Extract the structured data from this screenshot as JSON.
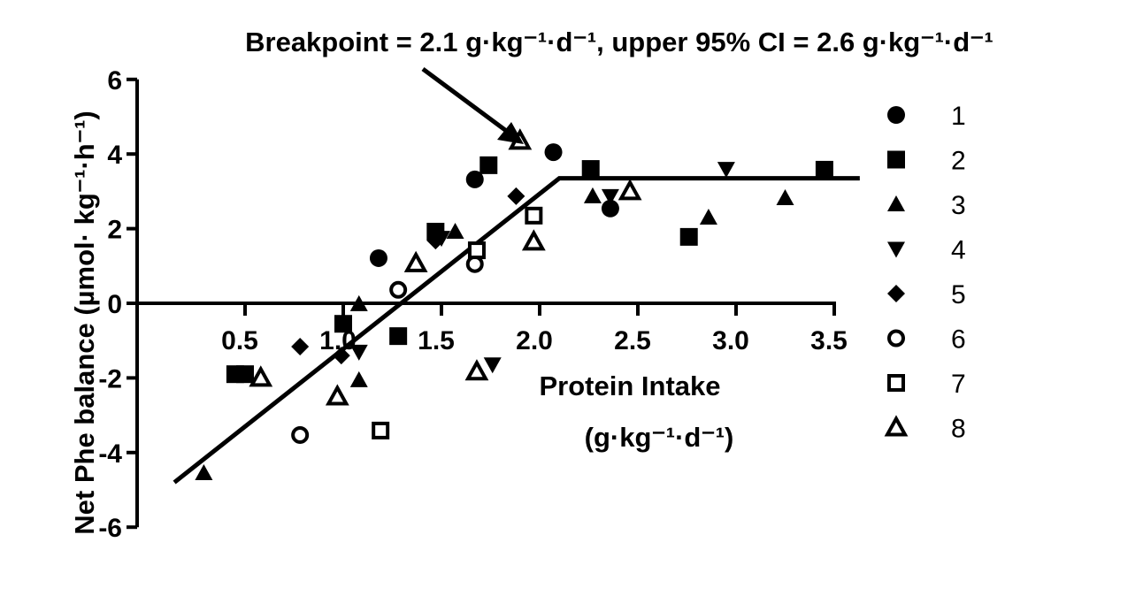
{
  "chart_data": {
    "type": "scatter",
    "title": "Breakpoint = 2.1 g·kg⁻¹·d⁻¹, upper 95% CI = 2.6 g·kg⁻¹·d⁻¹",
    "xlabel_line1": "Protein Intake",
    "xlabel_line2": "(g·kg⁻¹·d⁻¹)",
    "ylabel": "Net Phe balance (µmol· kg⁻¹·h⁻¹)",
    "xlim": [
      0,
      3.5
    ],
    "ylim": [
      -6,
      6
    ],
    "x_ticks": [
      "0.5",
      "1.0",
      "1.5",
      "2.0",
      "2.5",
      "3.0",
      "3.5"
    ],
    "y_ticks": [
      "6",
      "4",
      "2",
      "0",
      "-2",
      "-4",
      "-6"
    ],
    "grid": false,
    "legend_placement": "right",
    "breakpoint": 2.1,
    "breakpoint_line": [
      [
        0.14,
        -4.8
      ],
      [
        2.1,
        3.35
      ],
      [
        3.63,
        3.35
      ]
    ],
    "series": [
      {
        "name": "1",
        "marker": "circle-filled",
        "points": [
          [
            1.18,
            1.21
          ],
          [
            1.67,
            3.32
          ],
          [
            2.07,
            4.05
          ],
          [
            2.36,
            2.54
          ]
        ]
      },
      {
        "name": "2",
        "marker": "square-filled",
        "points": [
          [
            0.45,
            -1.9
          ],
          [
            0.5,
            -1.9
          ],
          [
            1.0,
            -0.55
          ],
          [
            1.28,
            -0.88
          ],
          [
            1.47,
            1.92
          ],
          [
            1.74,
            3.7
          ],
          [
            2.26,
            3.6
          ],
          [
            2.76,
            1.78
          ],
          [
            3.45,
            3.58
          ]
        ]
      },
      {
        "name": "3",
        "marker": "triangle-up-filled",
        "points": [
          [
            0.29,
            -4.55
          ],
          [
            1.08,
            -0.02
          ],
          [
            1.08,
            -2.06
          ],
          [
            1.57,
            1.92
          ],
          [
            1.9,
            4.45
          ],
          [
            2.27,
            2.87
          ],
          [
            2.86,
            2.3
          ],
          [
            3.25,
            2.82
          ]
        ]
      },
      {
        "name": "4",
        "marker": "triangle-down-filled",
        "points": [
          [
            1.08,
            -1.3
          ],
          [
            1.76,
            -1.64
          ],
          [
            2.36,
            2.87
          ],
          [
            2.95,
            3.6
          ],
          [
            1.5,
            1.75
          ]
        ]
      },
      {
        "name": "5",
        "marker": "diamond-filled",
        "points": [
          [
            0.78,
            -1.16
          ],
          [
            0.99,
            -1.4
          ],
          [
            1.47,
            1.68
          ],
          [
            1.88,
            2.87
          ]
        ]
      },
      {
        "name": "6",
        "marker": "circle-open",
        "points": [
          [
            0.78,
            -3.53
          ],
          [
            1.28,
            0.36
          ],
          [
            1.67,
            1.05
          ]
        ]
      },
      {
        "name": "7",
        "marker": "square-open",
        "points": [
          [
            1.19,
            -3.41
          ],
          [
            1.68,
            1.42
          ],
          [
            1.97,
            2.35
          ]
        ]
      },
      {
        "name": "8",
        "marker": "triangle-up-open",
        "points": [
          [
            0.58,
            -2.0
          ],
          [
            0.97,
            -2.5
          ],
          [
            1.37,
            1.07
          ],
          [
            1.68,
            -1.83
          ],
          [
            1.97,
            1.65
          ],
          [
            2.46,
            3.0
          ],
          [
            1.9,
            4.35
          ]
        ]
      }
    ]
  }
}
